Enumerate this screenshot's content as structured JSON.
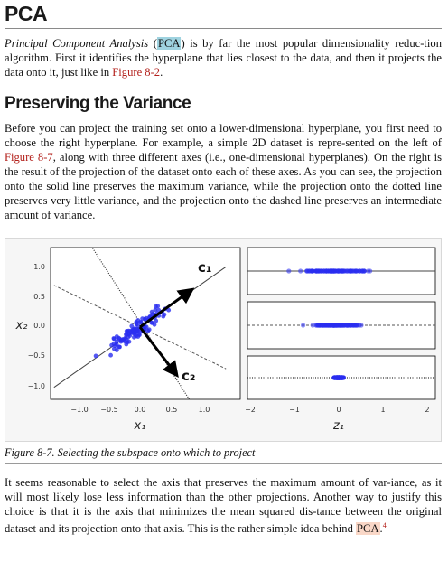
{
  "section_title": "PCA",
  "intro": {
    "italic_lead": "Principal Component Analysis",
    "open_paren": " (",
    "abbr": "PCA",
    "text_after_abbr": ") is by far the most popular dimensionality reduc-tion algorithm. First it identifies the hyperplane that lies closest to the data, and then it projects the data onto it, just like in ",
    "xref": "Figure 8-2",
    "end": "."
  },
  "subsection_title": "Preserving the Variance",
  "body1": {
    "before_xref": "Before you can project the training set onto a lower-dimensional hyperplane, you first need to choose the right hyperplane. For example, a simple 2D dataset is repre-sented on the left of ",
    "xref": "Figure 8-7",
    "after_xref": ", along with three different axes (i.e., one-dimensional hyperplanes). On the right is the result of the projection of the dataset onto each of these axes. As you can see, the projection onto the solid line preserves the maximum variance, while the projection onto the dotted line preserves very little variance, and the projection onto the dashed line preserves an intermediate amount of variance."
  },
  "figure": {
    "caption": "Figure 8-7. Selecting the subspace onto which to project",
    "left_yticks": [
      "1.0",
      "0.5",
      "0.0",
      "−0.5",
      "−1.0"
    ],
    "left_xticks": [
      "−1.0",
      "−0.5",
      "0.0",
      "0.5",
      "1.0"
    ],
    "left_xlabel": "x₁",
    "left_ylabel": "x₂",
    "c1_label": "c₁",
    "c2_label": "c₂",
    "right_xticks": [
      "−2",
      "−1",
      "0",
      "1",
      "2"
    ],
    "right_xlabel": "z₁",
    "point_color": "#2a2ef0",
    "arrow_color": "#000000"
  },
  "body2": {
    "text": "It seems reasonable to select the axis that preserves the maximum amount of var-iance, as it will most likely lose less information than the other projections. Another way to justify this choice is that it is the axis that minimizes the mean squared dis-tance between the original dataset and its projection onto that axis. This is the rather simple idea behind ",
    "abbr": "PCA",
    "end": ".",
    "footnote": "4"
  }
}
